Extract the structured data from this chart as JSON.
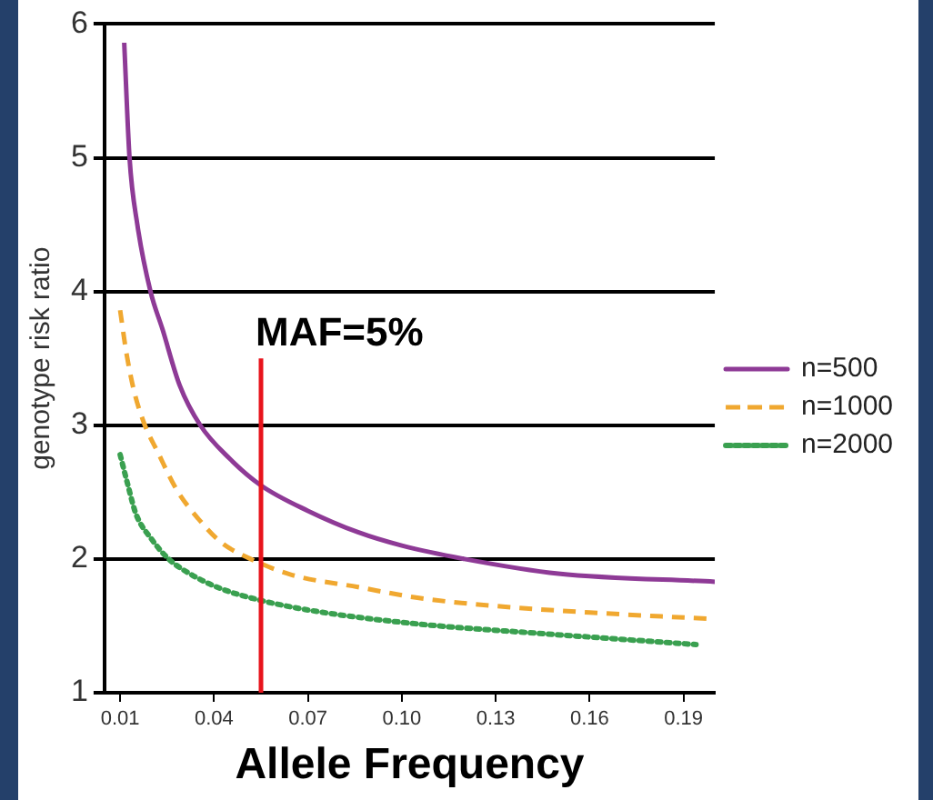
{
  "chart_data": {
    "type": "line",
    "xlabel": "Allele Frequency",
    "ylabel": "genotype risk ratio",
    "xlim": [
      0.005,
      0.2
    ],
    "xticks": [
      0.01,
      0.04,
      0.07,
      {
        "value": 0.1,
        "label": "0.10"
      },
      0.13,
      0.16,
      0.19
    ],
    "ylim": [
      1,
      6
    ],
    "yticks": [
      1,
      2,
      3,
      4,
      5,
      6
    ],
    "grid": "y",
    "legend": "right",
    "marker": "none",
    "series": [
      {
        "name": "n=500",
        "color": "#8e3a96",
        "line_style": "solid",
        "x": [
          0.0113,
          0.013,
          0.0155,
          0.0197,
          0.0235,
          0.029,
          0.0356,
          0.045,
          0.055,
          0.07,
          0.086,
          0.1,
          0.12,
          0.15,
          0.2
        ],
        "values": [
          5.86,
          5,
          4.5,
          4,
          3.72,
          3.3,
          3,
          2.75,
          2.55,
          2.36,
          2.2,
          2.1,
          2,
          1.89,
          1.83
        ]
      },
      {
        "name": "n=1000",
        "color": "#f0a830",
        "line_style": "dashed",
        "x": [
          0.01,
          0.012,
          0.0145,
          0.0179,
          0.022,
          0.028,
          0.035,
          0.0425,
          0.0517,
          0.065,
          0.086,
          0.105,
          0.129,
          0.16,
          0.2
        ],
        "values": [
          3.86,
          3.54,
          3.25,
          3,
          2.8,
          2.52,
          2.3,
          2.12,
          2,
          1.88,
          1.79,
          1.71,
          1.65,
          1.6,
          1.55
        ]
      },
      {
        "name": "n=2000",
        "color": "#3aa050",
        "line_style": "dotted",
        "x": [
          0.01,
          0.0125,
          0.015,
          0.02,
          0.0255,
          0.033,
          0.042,
          0.055,
          0.075,
          0.107,
          0.14,
          0.17,
          0.194
        ],
        "values": [
          2.78,
          2.55,
          2.34,
          2.15,
          2,
          1.88,
          1.78,
          1.69,
          1.6,
          1.51,
          1.45,
          1.4,
          1.36
        ]
      }
    ],
    "ref_lines": [
      {
        "axis": "x",
        "value": 0.055,
        "label": "MAF=5%",
        "color": "#e8141c"
      }
    ]
  }
}
